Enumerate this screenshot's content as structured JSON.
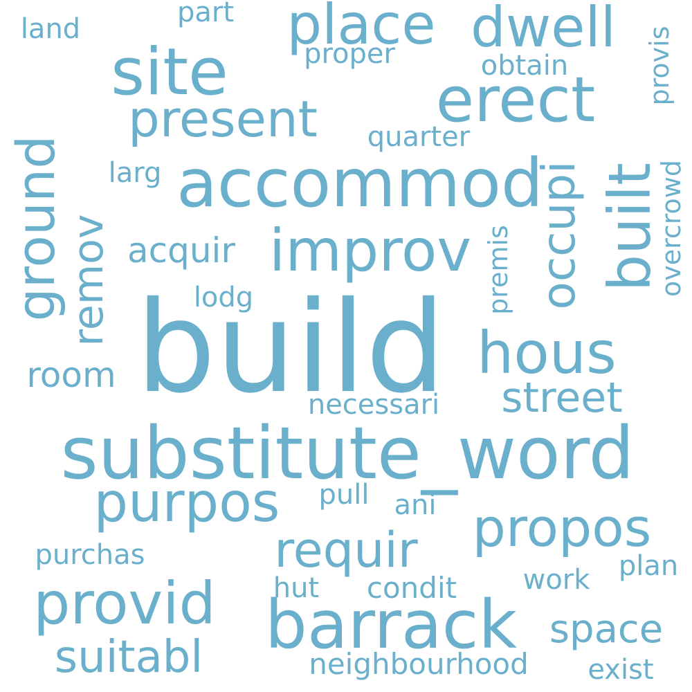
{
  "color": "#6aafcb",
  "words": [
    "build",
    "substitute_word",
    "accommod",
    "improv",
    "barrack",
    "site",
    "erect",
    "place",
    "dwell",
    "hous",
    "provid",
    "purpos",
    "propos",
    "requir",
    "present",
    "built",
    "occupi",
    "ground",
    "remov",
    "street",
    "suitabl",
    "acquir",
    "space",
    "room",
    "neighbourhood",
    "condit",
    "necessari",
    "quarter",
    "obtain",
    "proper",
    "land",
    "part",
    "larg",
    "lodg",
    "purchas",
    "pull",
    "ani",
    "hut",
    "work",
    "plan",
    "exist",
    "premis",
    "provis",
    "overcrowd"
  ]
}
